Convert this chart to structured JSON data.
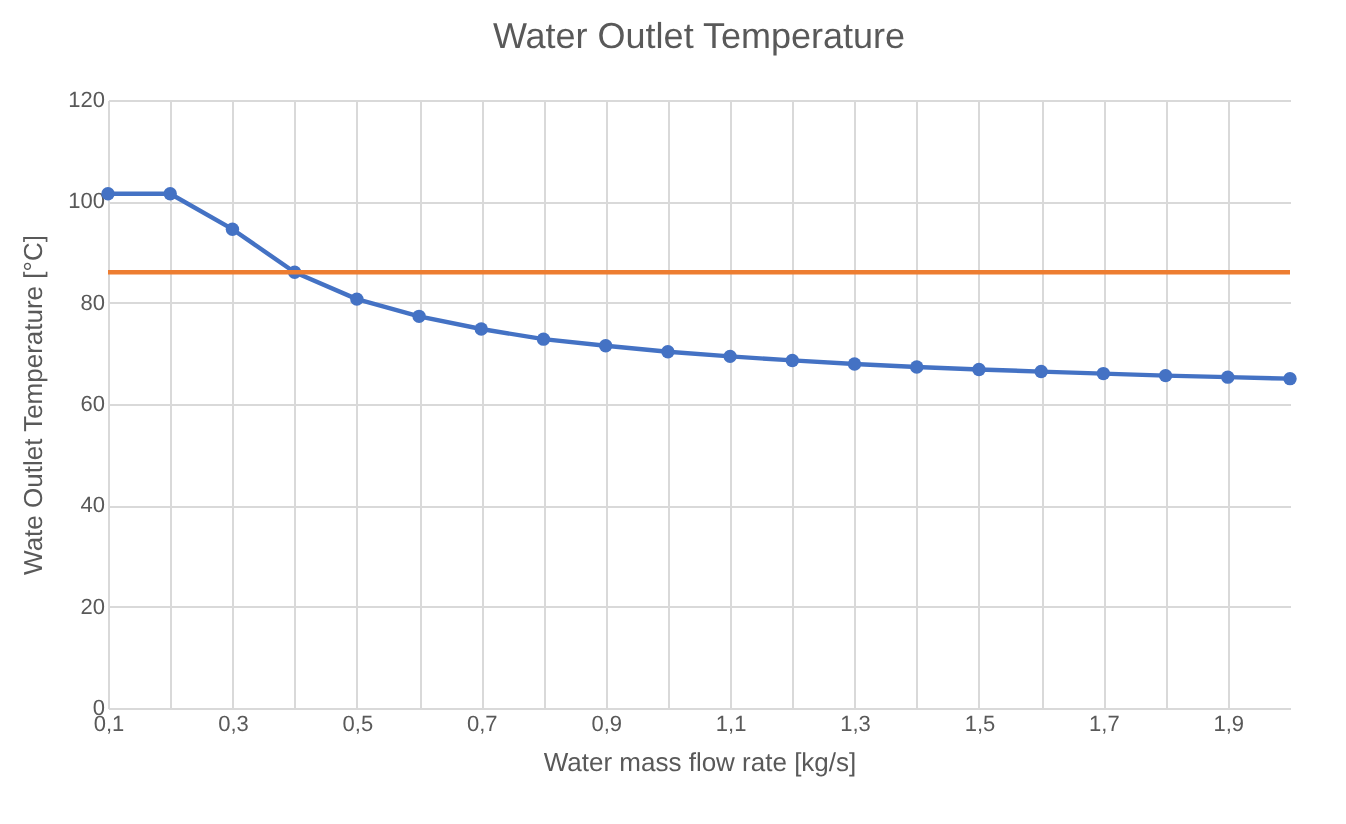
{
  "chart_data": {
    "type": "line",
    "title": "Water Outlet Temperature",
    "xlabel": "Water mass flow rate [kg/s]",
    "ylabel": "Wate Outlet Temperature [°C]",
    "x": [
      0.1,
      0.2,
      0.3,
      0.4,
      0.5,
      0.6,
      0.7,
      0.8,
      0.9,
      1.0,
      1.1,
      1.2,
      1.3,
      1.4,
      1.5,
      1.6,
      1.7,
      1.8,
      1.9,
      2.0
    ],
    "series": [
      {
        "color": "#4472c4",
        "values": [
          101.5,
          101.5,
          94.5,
          86,
          80.7,
          77.3,
          74.8,
          72.8,
          71.5,
          70.3,
          69.4,
          68.6,
          67.9,
          67.3,
          66.8,
          66.4,
          66.0,
          65.6,
          65.3,
          65.0
        ]
      }
    ],
    "ref_lines": [
      {
        "axis": "y",
        "value": 86,
        "color": "#ed7d31"
      }
    ],
    "xlim": [
      0.1,
      2.0
    ],
    "xticks": [
      {
        "value": 0.1,
        "label": "0,1"
      },
      {
        "value": 0.2,
        "label": null
      },
      {
        "value": 0.3,
        "label": "0,3"
      },
      {
        "value": 0.4,
        "label": null
      },
      {
        "value": 0.5,
        "label": "0,5"
      },
      {
        "value": 0.6,
        "label": null
      },
      {
        "value": 0.7,
        "label": "0,7"
      },
      {
        "value": 0.8,
        "label": null
      },
      {
        "value": 0.9,
        "label": "0,9"
      },
      {
        "value": 1.0,
        "label": null
      },
      {
        "value": 1.1,
        "label": "1,1"
      },
      {
        "value": 1.2,
        "label": null
      },
      {
        "value": 1.3,
        "label": "1,3"
      },
      {
        "value": 1.4,
        "label": null
      },
      {
        "value": 1.5,
        "label": "1,5"
      },
      {
        "value": 1.6,
        "label": null
      },
      {
        "value": 1.7,
        "label": "1,7"
      },
      {
        "value": 1.8,
        "label": null
      },
      {
        "value": 1.9,
        "label": "1,9"
      }
    ],
    "ylim": [
      0,
      120
    ],
    "yticks": [
      0,
      20,
      40,
      60,
      80,
      100,
      120
    ],
    "grid": true,
    "marker": "circle",
    "line_style": "solid"
  }
}
